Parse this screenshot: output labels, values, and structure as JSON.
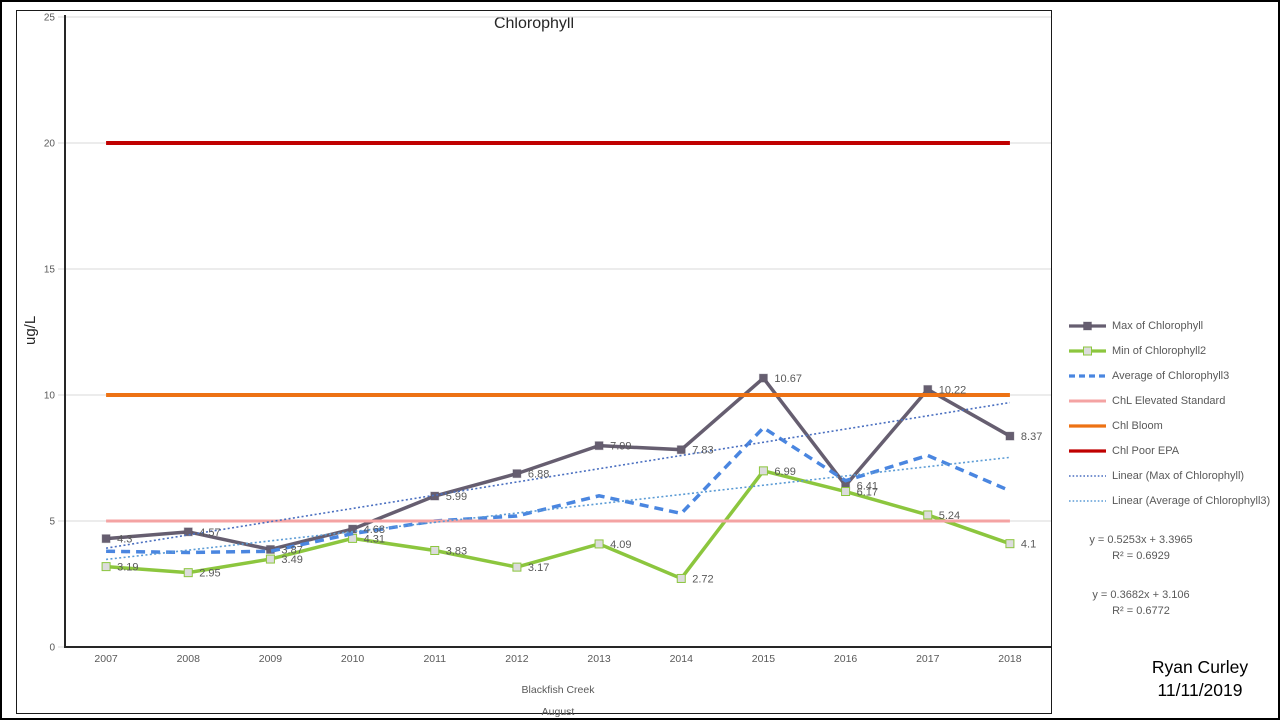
{
  "page": {
    "author_name": "Ryan Curley",
    "author_date": "11/11/2019"
  },
  "chart_data": {
    "type": "line",
    "title": "Chlorophyll",
    "ylabel": "ug/L",
    "xlabel_lines": [
      "Blackfish Creek",
      "August"
    ],
    "ylim": [
      0,
      25
    ],
    "yticks": [
      0,
      5,
      10,
      15,
      20,
      25
    ],
    "grid": true,
    "legend_position": "right",
    "categories": [
      "2007",
      "2008",
      "2009",
      "2010",
      "2011",
      "2012",
      "2013",
      "2014",
      "2015",
      "2016",
      "2017",
      "2018"
    ],
    "colors": {
      "gridline": "#d9d9d9",
      "axis": "#262626",
      "tick_text": "#595959",
      "data_label_text": "#595959"
    },
    "series": [
      {
        "name": "Max of Chlorophyll",
        "kind": "line",
        "style": "solid",
        "color": "#665e70",
        "width": 3.5,
        "marker": {
          "shape": "square",
          "fill": "#665e70",
          "stroke": "#57506150"
        },
        "show_labels": true,
        "values": [
          4.3,
          4.57,
          3.87,
          4.68,
          5.99,
          6.88,
          7.99,
          7.83,
          10.67,
          6.41,
          10.22,
          8.37
        ]
      },
      {
        "name": "Min of Chlorophyll2",
        "kind": "line",
        "style": "solid",
        "color": "#8cc63e",
        "width": 3.5,
        "marker": {
          "shape": "square",
          "fill": "#dcdcdc",
          "stroke": "#8cc63e"
        },
        "show_labels": true,
        "values": [
          3.19,
          2.95,
          3.49,
          4.31,
          3.83,
          3.17,
          4.09,
          2.72,
          6.99,
          6.17,
          5.24,
          4.1
        ]
      },
      {
        "name": "Average of Chlorophyll3",
        "kind": "line",
        "style": "dashed",
        "color": "#4a86e0",
        "width": 3.5,
        "show_labels": false,
        "values_estimated": true,
        "values": [
          3.8,
          3.75,
          3.8,
          4.5,
          5.0,
          5.2,
          6.0,
          5.3,
          8.7,
          6.6,
          7.6,
          6.2
        ]
      },
      {
        "name": "ChL Elevated Standard",
        "kind": "constant",
        "style": "solid",
        "color": "#f4a3a3",
        "width": 3,
        "value": 5
      },
      {
        "name": "Chl Bloom",
        "kind": "constant",
        "style": "solid",
        "color": "#ed7214",
        "width": 4,
        "value": 10
      },
      {
        "name": "Chl Poor EPA",
        "kind": "constant",
        "style": "solid",
        "color": "#c00000",
        "width": 4,
        "value": 20
      },
      {
        "name": "Linear (Max of Chlorophyll)",
        "kind": "trend",
        "style": "dotted",
        "color": "#4a6fc0",
        "width": 1.6,
        "slope": 0.5253,
        "intercept": 3.3965,
        "r2": 0.6929,
        "equation_label": "y = 0.5253x + 3.3965",
        "r2_label": "R² = 0.6929"
      },
      {
        "name": "Linear (Average of Chlorophyll3)",
        "kind": "trend",
        "style": "dotted",
        "color": "#5b9bd5",
        "width": 1.6,
        "slope": 0.3682,
        "intercept": 3.106,
        "r2": 0.6772,
        "equation_label": "y = 0.3682x + 3.106",
        "r2_label": "R² = 0.6772"
      }
    ]
  }
}
